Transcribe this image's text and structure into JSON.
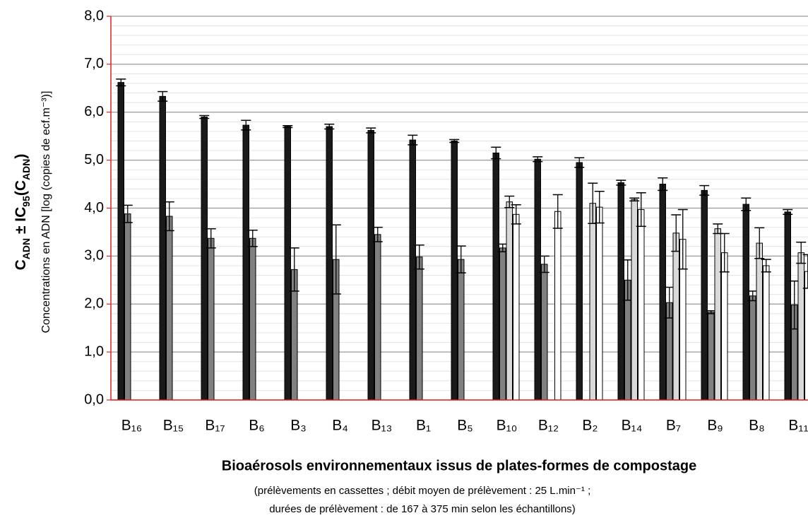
{
  "chart_data": {
    "type": "bar",
    "title": "Bioaérosols environnementaux issus de plates-formes de compostage",
    "subtitle_lines": [
      "(prélèvements en cassettes ; débit moyen de prélèvement : 25 L.min⁻¹ ;",
      "durées de prélèvement : de 167 à 375 min selon les échantillons)"
    ],
    "y_label_parts": [
      {
        "text": "C"
      },
      {
        "text": "ADN",
        "sub": true
      },
      {
        "text": " ± IC"
      },
      {
        "text": "95",
        "sub": true
      },
      {
        "text": "(C"
      },
      {
        "text": "ADN",
        "sub": true
      },
      {
        "text": ")"
      }
    ],
    "y_label_secondary": "Concentrations en ADN  [log (copies de ecf.m⁻³)]",
    "categories": [
      "B₁₆",
      "B₁₅",
      "B₁₇",
      "B₆",
      "B₃",
      "B₄",
      "B₁₃",
      "B₁",
      "B₅",
      "B₁₀",
      "B₁₂",
      "B₂",
      "B₁₄",
      "B₇",
      "B₉",
      "B₈",
      "B₁₁"
    ],
    "series": [
      {
        "color": "#1a1a1a",
        "values": [
          6.62,
          6.33,
          5.9,
          5.73,
          5.7,
          5.7,
          5.62,
          5.42,
          5.4,
          5.15,
          5.02,
          4.95,
          4.53,
          4.5,
          4.37,
          4.08,
          3.92
        ],
        "errors": [
          0.07,
          0.1,
          0.03,
          0.1,
          0.02,
          0.05,
          0.05,
          0.1,
          0.03,
          0.12,
          0.05,
          0.1,
          0.05,
          0.13,
          0.1,
          0.13,
          0.05
        ]
      },
      {
        "color": "#808080",
        "values": [
          3.88,
          3.83,
          3.37,
          3.37,
          2.72,
          2.93,
          3.45,
          2.98,
          2.93,
          3.17,
          2.83,
          null,
          2.5,
          2.03,
          1.83,
          2.17,
          1.98
        ],
        "errors": [
          0.18,
          0.3,
          0.2,
          0.17,
          0.45,
          0.72,
          0.15,
          0.25,
          0.28,
          0.08,
          0.17,
          null,
          0.42,
          0.32,
          0.03,
          0.1,
          0.5
        ]
      },
      {
        "color": "#d9d9d9",
        "values": [
          null,
          null,
          null,
          null,
          null,
          null,
          null,
          null,
          null,
          4.13,
          null,
          4.1,
          4.18,
          3.48,
          3.57,
          3.27,
          3.07
        ],
        "errors": [
          null,
          null,
          null,
          null,
          null,
          null,
          null,
          null,
          null,
          0.12,
          null,
          0.42,
          0.03,
          0.38,
          0.1,
          0.32,
          0.22
        ]
      },
      {
        "color": "#ffffff",
        "values": [
          null,
          null,
          null,
          null,
          null,
          null,
          null,
          null,
          null,
          3.87,
          3.93,
          4.02,
          3.97,
          3.35,
          3.07,
          2.8,
          2.68
        ],
        "errors": [
          null,
          null,
          null,
          null,
          null,
          null,
          null,
          null,
          null,
          0.2,
          0.35,
          0.33,
          0.35,
          0.62,
          0.4,
          0.13,
          0.35
        ]
      }
    ],
    "ylim": [
      0,
      8
    ],
    "yticks": [
      {
        "value": 0,
        "label": "0,0"
      },
      {
        "value": 1,
        "label": "1,0"
      },
      {
        "value": 2,
        "label": "2,0"
      },
      {
        "value": 3,
        "label": "3,0"
      },
      {
        "value": 4,
        "label": "4,0"
      },
      {
        "value": 5,
        "label": "5,0"
      },
      {
        "value": 6,
        "label": "6,0"
      },
      {
        "value": 7,
        "label": "7,0"
      },
      {
        "value": 8,
        "label": "8,0"
      }
    ],
    "grid": true,
    "minor_grid_step": 0.2,
    "axis_color": "#e0201c"
  }
}
